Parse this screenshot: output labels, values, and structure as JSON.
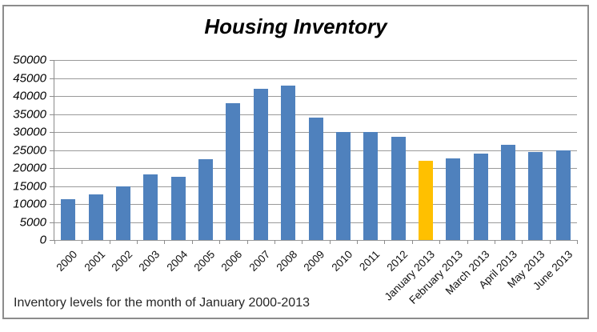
{
  "caption": "Inventory levels for the month of January 2000-2013",
  "chart_data": {
    "type": "bar",
    "title": "Housing Inventory",
    "categories": [
      "2000",
      "2001",
      "2002",
      "2003",
      "2004",
      "2005",
      "2006",
      "2007",
      "2008",
      "2009",
      "2010",
      "2011",
      "2012",
      "January 2013",
      "February 2013",
      "March 2013",
      "April 2013",
      "May 2013",
      "June 2013"
    ],
    "values": [
      11300,
      12700,
      14800,
      18300,
      17600,
      22500,
      37900,
      42000,
      42900,
      33900,
      30000,
      30000,
      28600,
      22000,
      22700,
      24000,
      26500,
      24500,
      24800
    ],
    "highlight_index": 13,
    "highlight_category": "January 2013",
    "bar_color": "#4F81BD",
    "highlight_color": "#FFC000",
    "xlabel": "",
    "ylabel": "",
    "ylim": [
      0,
      50000
    ],
    "ytick_step": 5000,
    "yticks": [
      0,
      5000,
      10000,
      15000,
      20000,
      25000,
      30000,
      35000,
      40000,
      45000,
      50000
    ],
    "grid": "horizontal",
    "legend": "none",
    "annotation": "Inventory levels for the month of January 2000-2013"
  },
  "colors": {
    "gridline": "#9a9a9a",
    "axis": "#8c8c8c",
    "frame_border": "#8c8c8c",
    "title_text": "#000000",
    "label_text": "#111111",
    "caption_text": "#262626"
  }
}
